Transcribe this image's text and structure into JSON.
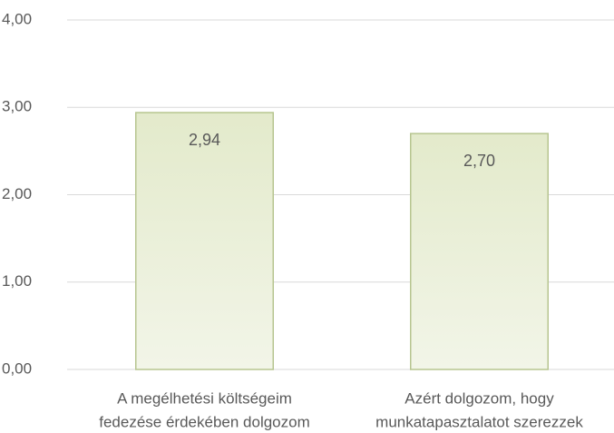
{
  "chart_data": {
    "type": "bar",
    "categories": [
      [
        "A megélhetési költségeim",
        "fedezése érdekében dolgozom"
      ],
      [
        "Azért dolgozom, hogy",
        "munkatapasztalatot szerezzek"
      ]
    ],
    "values": [
      2.94,
      2.7
    ],
    "value_labels": [
      "2,94",
      "2,70"
    ],
    "color": "#e8eed6",
    "ylim": [
      0,
      4
    ],
    "yticks": [
      {
        "value": 0,
        "label": "0,00"
      },
      {
        "value": 1,
        "label": "1,00"
      },
      {
        "value": 2,
        "label": "2,00"
      },
      {
        "value": 3,
        "label": "3,00"
      },
      {
        "value": 4,
        "label": "4,00"
      }
    ],
    "grid": true
  }
}
